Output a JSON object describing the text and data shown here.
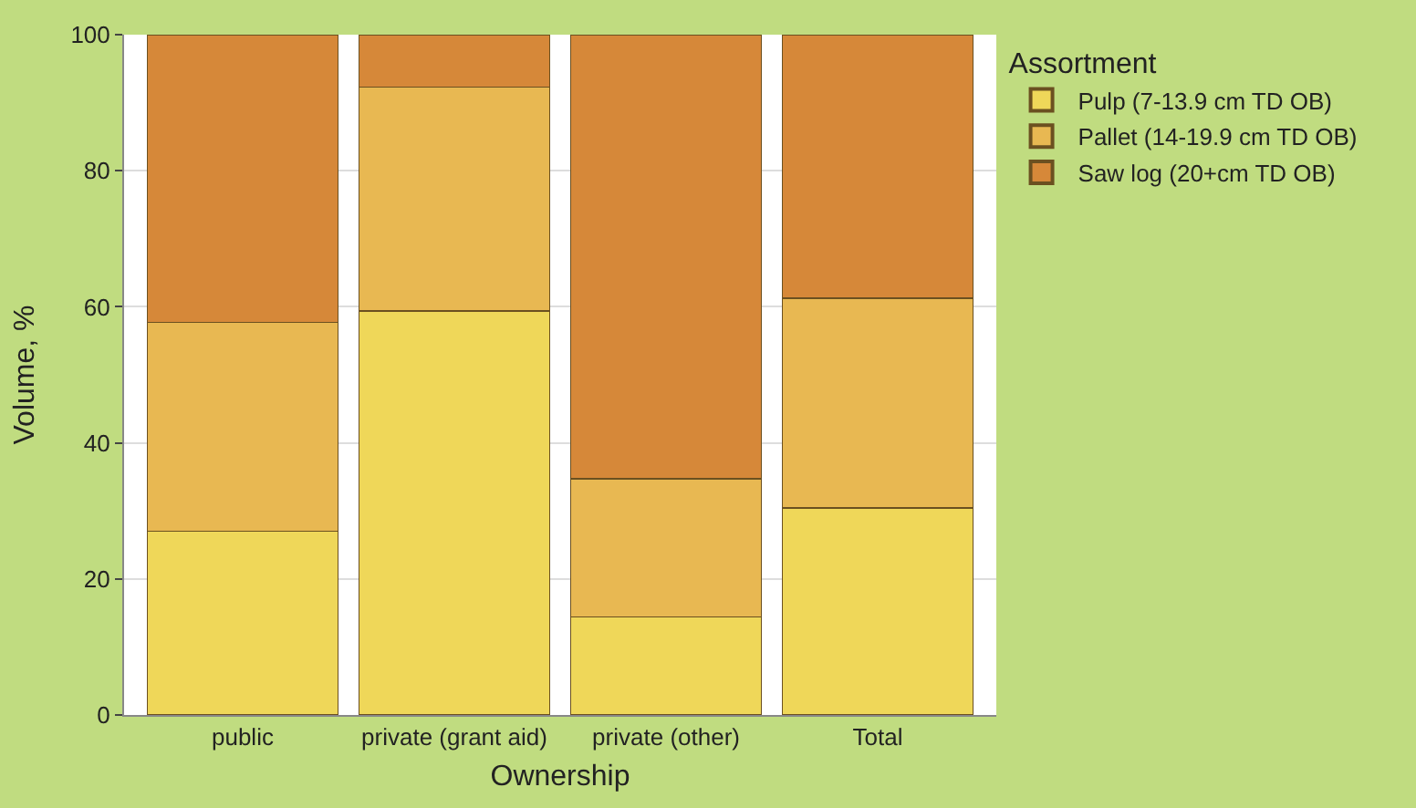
{
  "chart_data": {
    "type": "bar",
    "stacked": true,
    "xlabel": "Ownership",
    "ylabel": "Volume, %",
    "legend_title": "Assortment",
    "legend": "right",
    "grid": "y",
    "categories": [
      "public",
      "private (grant aid)",
      "private (other)",
      "Total"
    ],
    "series": [
      {
        "name": "Pulp (7-13.9 cm TD OB)",
        "color": "#efd759",
        "values": [
          27.0,
          59.4,
          14.4,
          30.4
        ]
      },
      {
        "name": "Pallet (14-19.9 cm TD OB)",
        "color": "#e8b852",
        "values": [
          30.7,
          32.9,
          20.3,
          30.9
        ]
      },
      {
        "name": "Saw log (20+cm TD OB)",
        "color": "#d68839",
        "values": [
          42.3,
          7.7,
          65.3,
          38.7
        ]
      }
    ],
    "ylim": [
      0,
      100
    ],
    "yticks": [
      0,
      20,
      40,
      60,
      80,
      100
    ]
  }
}
